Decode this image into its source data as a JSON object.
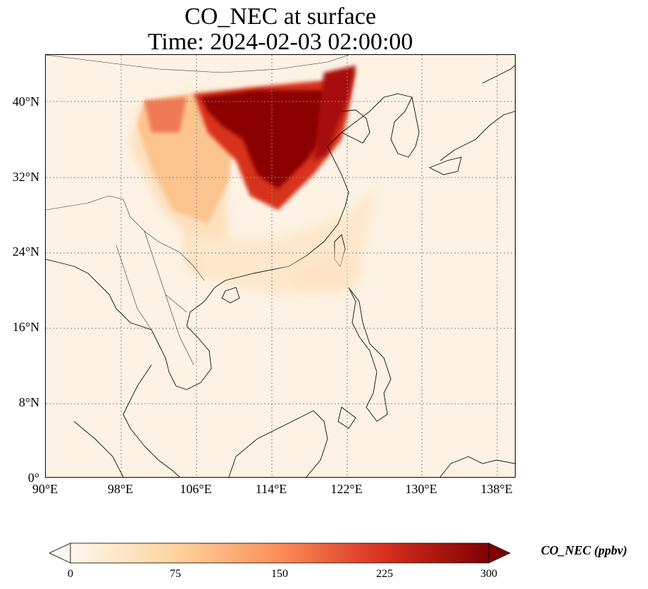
{
  "title": {
    "line1": "CO_NEC at surface",
    "line2": "Time: 2024-02-03 02:00:00"
  },
  "map": {
    "region": "East and Southeast Asia",
    "projection": "PlateCarree",
    "lon_range": [
      90,
      140
    ],
    "lat_range": [
      0,
      45
    ],
    "gridlines": "dotted gray",
    "coastlines": true,
    "borders": true,
    "field_description": "High CO_NEC concentrations over North China Plain and Yellow River region, extending southwest into central China; low values over ocean and Southeast Asia"
  },
  "axes": {
    "y_ticks": [
      "0°",
      "8°N",
      "16°N",
      "24°N",
      "32°N",
      "40°N"
    ],
    "x_ticks": [
      "90°E",
      "98°E",
      "106°E",
      "114°E",
      "122°E",
      "130°E",
      "138°E"
    ]
  },
  "colorbar": {
    "label": "CO_NEC (ppbv)",
    "ticks": [
      "0",
      "75",
      "150",
      "225",
      "300"
    ],
    "range": [
      0,
      300
    ],
    "colormap": "OrRd",
    "extend": "both",
    "colors": [
      "#fff7ec",
      "#fdd49e",
      "#fc8d59",
      "#d7301f",
      "#7f0000"
    ]
  }
}
